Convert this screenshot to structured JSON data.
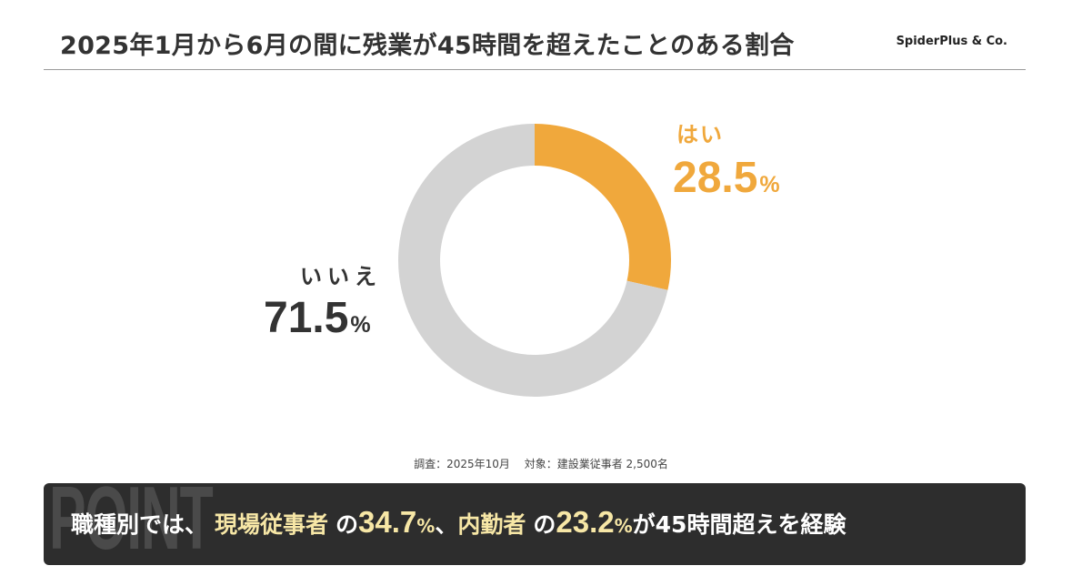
{
  "header": {
    "title": "2025年1月から6月の間に残業が45時間を超えたことのある割合",
    "brand": "SpiderPlus & Co."
  },
  "chart_data": {
    "type": "pie",
    "donut": true,
    "categories": [
      "はい",
      "いいえ"
    ],
    "values": [
      28.5,
      71.5
    ],
    "value_labels": [
      "28.5",
      "71.5"
    ],
    "unit": "%",
    "colors": [
      "#f0a83c",
      "#d3d3d3"
    ],
    "start_angle": "12 o'clock",
    "direction": "clockwise"
  },
  "source": "調査：2025年10月　 対象：建設業従事者 2,500名",
  "banner": {
    "watermark": "POINT",
    "lead": "職種別では、",
    "group1": "現場従事者",
    "particle1": "の",
    "value1": "34.7",
    "pct1": "%",
    "sep": "、",
    "group2": "内勤者",
    "particle2": "の",
    "value2": "23.2",
    "pct2": "%",
    "tail": "が45時間超えを経験"
  }
}
